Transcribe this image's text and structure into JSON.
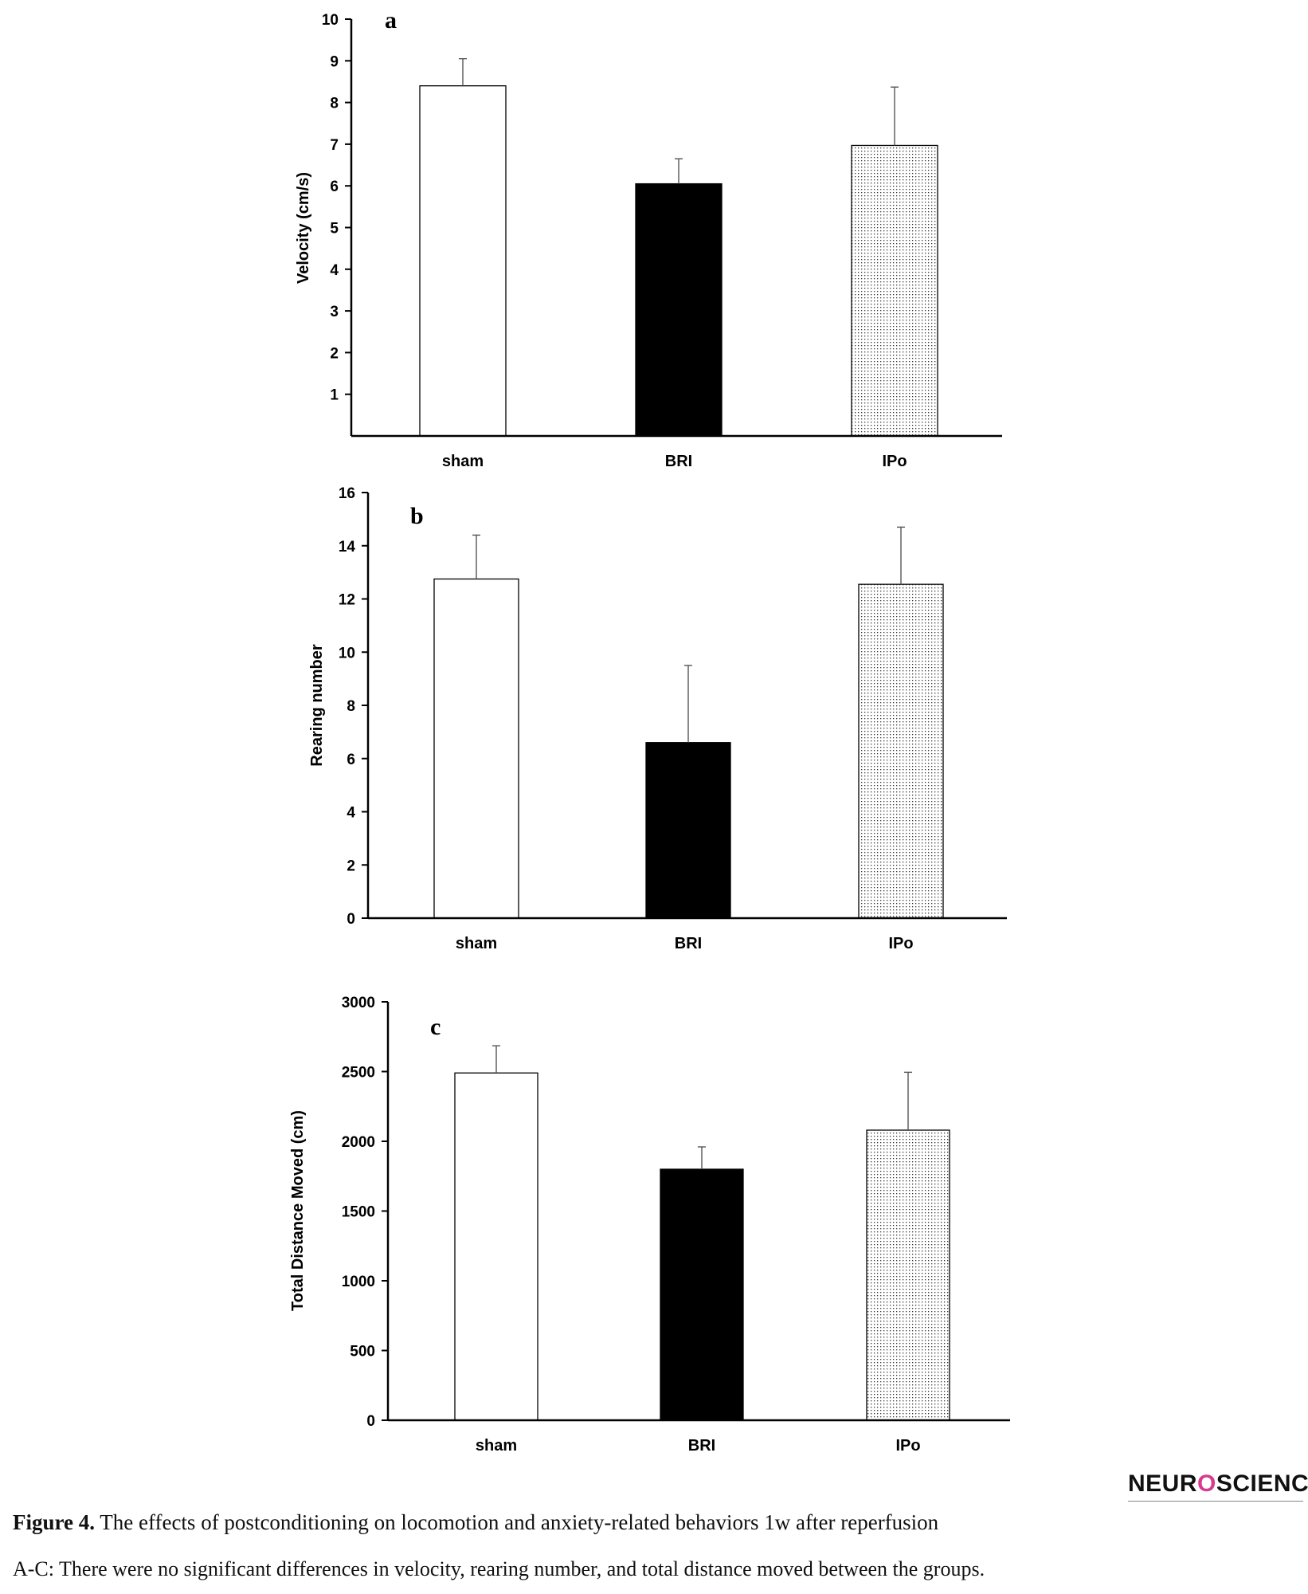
{
  "chart_data": [
    {
      "type": "bar",
      "panel": "a",
      "categories": [
        "sham",
        "BRI",
        "IPo"
      ],
      "values": [
        8.4,
        6.05,
        6.97
      ],
      "errors": [
        0.65,
        0.6,
        1.4
      ],
      "ylabel": "Velocity (cm/s)",
      "xlabel": "",
      "ylim": [
        0,
        10
      ],
      "yticks": [
        "1",
        "2",
        "3",
        "4",
        "5",
        "6",
        "7",
        "8",
        "9",
        "10"
      ],
      "ytick_values": [
        1,
        2,
        3,
        4,
        5,
        6,
        7,
        8,
        9,
        10
      ],
      "fills": [
        "white",
        "black",
        "dotted"
      ],
      "grid": false
    },
    {
      "type": "bar",
      "panel": "b",
      "categories": [
        "sham",
        "BRI",
        "IPo"
      ],
      "values": [
        12.75,
        6.6,
        12.55
      ],
      "errors": [
        1.65,
        2.9,
        2.15
      ],
      "ylabel": "Rearing number",
      "xlabel": "",
      "ylim": [
        0,
        16
      ],
      "yticks": [
        "0",
        "2",
        "4",
        "6",
        "8",
        "10",
        "12",
        "14",
        "16"
      ],
      "ytick_values": [
        0,
        2,
        4,
        6,
        8,
        10,
        12,
        14,
        16
      ],
      "fills": [
        "white",
        "black",
        "dotted"
      ],
      "grid": false
    },
    {
      "type": "bar",
      "panel": "c",
      "categories": [
        "sham",
        "BRI",
        "IPo"
      ],
      "values": [
        2490,
        1800,
        2080
      ],
      "errors": [
        195,
        160,
        415
      ],
      "ylabel": "Total Distance Moved (cm)",
      "xlabel": "",
      "ylim": [
        0,
        3000
      ],
      "yticks": [
        "0",
        "500",
        "1000",
        "1500",
        "2000",
        "2500",
        "3000"
      ],
      "ytick_values": [
        0,
        500,
        1000,
        1500,
        2000,
        2500,
        3000
      ],
      "fills": [
        "white",
        "black",
        "dotted"
      ],
      "grid": false
    }
  ],
  "logo": {
    "text_before": "NEUR",
    "text_o": "O",
    "text_after": "SCIENCE"
  },
  "caption": {
    "label": "Figure 4.",
    "title": " The effects of postconditioning on locomotion and anxiety-related behaviors 1w after reperfusion",
    "text": "A-C: There were no significant differences in velocity, rearing number, and total distance moved between the groups."
  }
}
